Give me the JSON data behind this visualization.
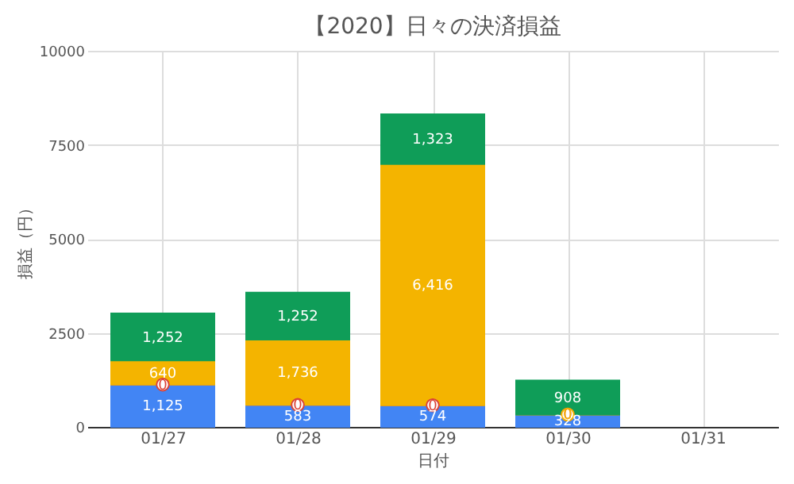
{
  "chart_data": {
    "type": "bar",
    "title": "【2020】日々の決済損益",
    "xlabel": "日付",
    "ylabel": "損益（円）",
    "categories": [
      "01/27",
      "01/28",
      "01/29",
      "01/30",
      "01/31"
    ],
    "stacked": true,
    "series": [
      {
        "color": "#4285f4",
        "values": [
          1125,
          583,
          574,
          328,
          null
        ],
        "value_labels": [
          "1,125",
          "583",
          "574",
          "328",
          null
        ]
      },
      {
        "color": "#db4437",
        "values": [
          0,
          0,
          0,
          0,
          null
        ],
        "value_labels": [
          "0",
          "0",
          "0",
          "0",
          null
        ]
      },
      {
        "color": "#f4b400",
        "values": [
          640,
          1736,
          6416,
          0,
          null
        ],
        "value_labels": [
          "640",
          "1,736",
          "6,416",
          "0",
          null
        ]
      },
      {
        "color": "#0f9d58",
        "values": [
          1252,
          1252,
          1323,
          908,
          null
        ],
        "value_labels": [
          "1,252",
          "1,252",
          "1,323",
          "908",
          null
        ]
      }
    ],
    "ylim": [
      0,
      10000
    ],
    "yticks": [
      0,
      2500,
      5000,
      7500,
      10000
    ],
    "grid": true
  }
}
